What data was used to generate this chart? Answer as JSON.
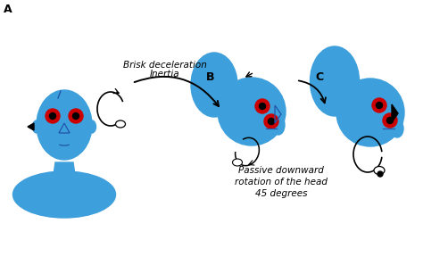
{
  "bg_color": "#ffffff",
  "blue": "#3d9fdb",
  "red": "#cc0000",
  "black": "#000000",
  "dark_blue": "#2255aa",
  "label_A": "A",
  "label_B": "B",
  "label_C": "C",
  "text1": "Brisk deceleration Inertia",
  "text2": "Passive downward\nrotation of the head\n45 degrees",
  "font_size_label": 9,
  "font_size_text": 7.5
}
